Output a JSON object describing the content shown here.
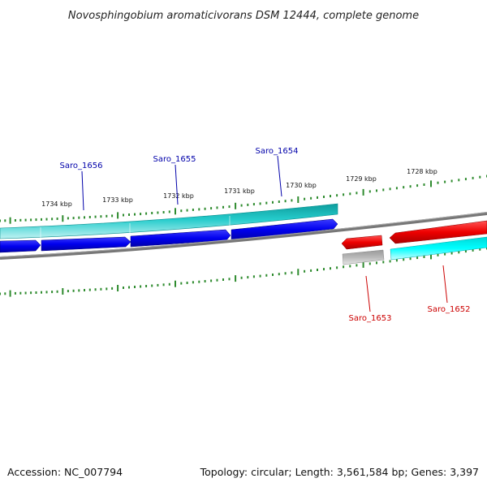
{
  "title": "Novosphingobium aromaticivorans DSM 12444, complete genome",
  "footer": {
    "accession": "Accession: NC_007794",
    "summary": "Topology: circular; Length: 3,561,584 bp; Genes: 3,397"
  },
  "colors": {
    "forward_gene_dark": "#1a1aa0",
    "forward_gene": "#0000ff",
    "forward_cds": "#1ec8c8",
    "reverse_gene": "#ff0000",
    "reverse_cds": "#00ffff",
    "reverse_pseudo": "#aaaaaa",
    "backbone": "#888888",
    "ticks": "#2e8b2e",
    "forward_label": "#0000aa",
    "reverse_label": "#cc0000"
  },
  "ticks": [
    {
      "label": "1734 kbp"
    },
    {
      "label": "1733 kbp"
    },
    {
      "label": "1732 kbp"
    },
    {
      "label": "1731 kbp"
    },
    {
      "label": "1730 kbp"
    },
    {
      "label": "1729 kbp"
    },
    {
      "label": "1728 kbp"
    }
  ],
  "genes_forward": [
    {
      "name": "Saro_1656"
    },
    {
      "name": "Saro_1655"
    },
    {
      "name": "Saro_1654"
    }
  ],
  "genes_reverse": [
    {
      "name": "Saro_1653"
    },
    {
      "name": "Saro_1652"
    }
  ]
}
